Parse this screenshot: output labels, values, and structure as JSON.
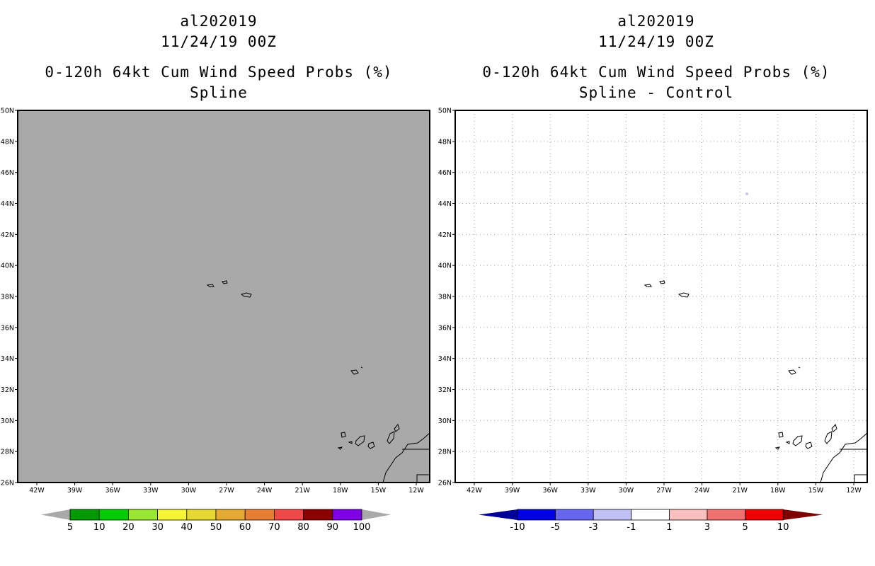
{
  "left_panel": {
    "storm_id": "al202019",
    "datetime": "11/24/19 00Z",
    "product": "0-120h 64kt Cum Wind Speed Probs (%)",
    "subtitle": "Spline",
    "lat_labels": [
      "50N",
      "48N",
      "46N",
      "44N",
      "42N",
      "40N",
      "38N",
      "36N",
      "34N",
      "32N",
      "30N",
      "28N",
      "26N"
    ],
    "lon_labels": [
      "42W",
      "39W",
      "36W",
      "33W",
      "30W",
      "27W",
      "24W",
      "21W",
      "18W",
      "15W",
      "12W"
    ],
    "colorbar": {
      "labels": [
        "5",
        "10",
        "20",
        "30",
        "40",
        "50",
        "60",
        "70",
        "80",
        "90",
        "100"
      ],
      "colors": [
        "#009900",
        "#00cc00",
        "#99e633",
        "#f5f533",
        "#e6d833",
        "#e6aa33",
        "#e67f33",
        "#f04848",
        "#8c0000",
        "#7f00e6"
      ],
      "end_color": "#a9a9a9"
    },
    "field_color": "#a9a9a9"
  },
  "right_panel": {
    "storm_id": "al202019",
    "datetime": "11/24/19 00Z",
    "product": "0-120h 64kt Cum Wind Speed Probs (%)",
    "subtitle": "Spline - Control",
    "lat_labels": [
      "50N",
      "48N",
      "46N",
      "44N",
      "42N",
      "40N",
      "38N",
      "36N",
      "34N",
      "32N",
      "30N",
      "28N",
      "26N"
    ],
    "lon_labels": [
      "42W",
      "39W",
      "36W",
      "33W",
      "30W",
      "27W",
      "24W",
      "21W",
      "18W",
      "15W",
      "12W"
    ],
    "colorbar": {
      "labels": [
        "-10",
        "-5",
        "-3",
        "-1",
        "1",
        "3",
        "5",
        "10"
      ],
      "colors": [
        "#0000e6",
        "#6666f0",
        "#c0c0f5",
        "#ffffff",
        "#fac0c0",
        "#f07070",
        "#f00000"
      ],
      "low_end_color": "#000099",
      "high_end_color": "#7f0000"
    },
    "field_color": "#ffffff",
    "grid_color": "#a0a0a0"
  }
}
